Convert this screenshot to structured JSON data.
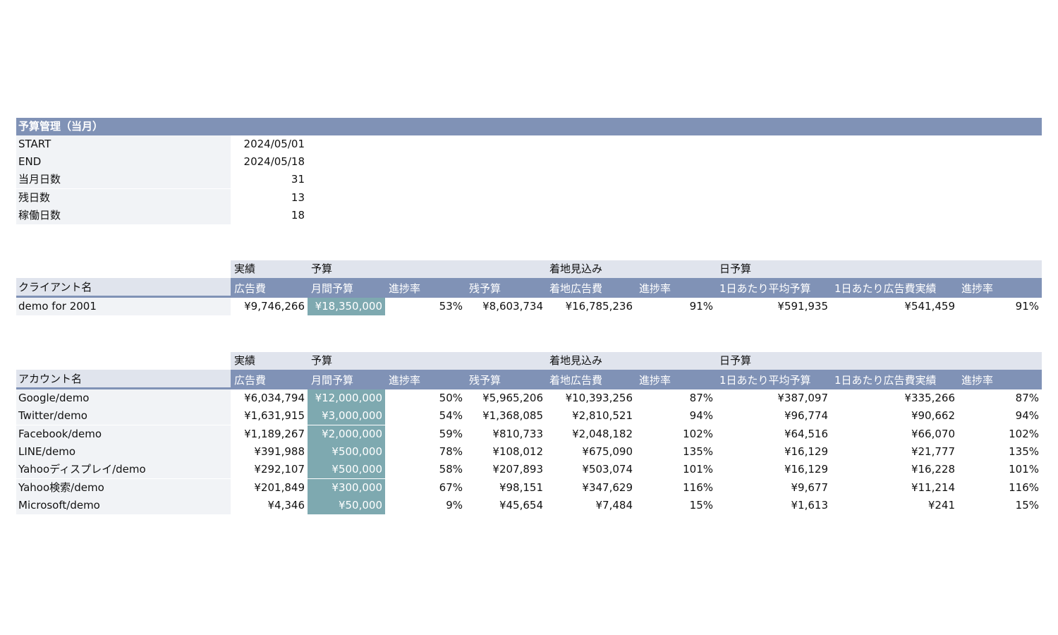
{
  "budget_section": {
    "title": "予算管理（当月）",
    "rows": [
      {
        "label": "START",
        "value": "2024/05/01"
      },
      {
        "label": "END",
        "value": "2024/05/18"
      },
      {
        "label": "当月日数",
        "value": "31"
      },
      {
        "label": "残日数",
        "value": "13"
      },
      {
        "label": "稼働日数",
        "value": "18"
      }
    ]
  },
  "client_table": {
    "group_headers": {
      "jisseki": "実績",
      "yosan": "予算",
      "chakuchi": "着地見込み",
      "nichiyosan": "日予算"
    },
    "name_header": "クライアント名",
    "columns": [
      "広告費",
      "月間予算",
      "進捗率",
      "残予算",
      "着地広告費",
      "進捗率",
      "1日あたり平均予算",
      "1日あたり広告費実績",
      "進捗率"
    ],
    "rows": [
      {
        "name": "demo for 2001",
        "cells": [
          "¥9,746,266",
          "¥18,350,000",
          "53%",
          "¥8,603,734",
          "¥16,785,236",
          "91%",
          "¥591,935",
          "¥541,459",
          "91%"
        ]
      }
    ]
  },
  "account_table": {
    "group_headers": {
      "jisseki": "実績",
      "yosan": "予算",
      "chakuchi": "着地見込み",
      "nichiyosan": "日予算"
    },
    "name_header": "アカウント名",
    "columns": [
      "広告費",
      "月間予算",
      "進捗率",
      "残予算",
      "着地広告費",
      "進捗率",
      "1日あたり平均予算",
      "1日あたり広告費実績",
      "進捗率"
    ],
    "rows": [
      {
        "name": "Google/demo",
        "cells": [
          "¥6,034,794",
          "¥12,000,000",
          "50%",
          "¥5,965,206",
          "¥10,393,256",
          "87%",
          "¥387,097",
          "¥335,266",
          "87%"
        ]
      },
      {
        "name": "Twitter/demo",
        "cells": [
          "¥1,631,915",
          "¥3,000,000",
          "54%",
          "¥1,368,085",
          "¥2,810,521",
          "94%",
          "¥96,774",
          "¥90,662",
          "94%"
        ]
      },
      {
        "name": "Facebook/demo",
        "cells": [
          "¥1,189,267",
          "¥2,000,000",
          "59%",
          "¥810,733",
          "¥2,048,182",
          "102%",
          "¥64,516",
          "¥66,070",
          "102%"
        ]
      },
      {
        "name": "LINE/demo",
        "cells": [
          "¥391,988",
          "¥500,000",
          "78%",
          "¥108,012",
          "¥675,090",
          "135%",
          "¥16,129",
          "¥21,777",
          "135%"
        ]
      },
      {
        "name": "Yahooディスプレイ/demo",
        "cells": [
          "¥292,107",
          "¥500,000",
          "58%",
          "¥207,893",
          "¥503,074",
          "101%",
          "¥16,129",
          "¥16,228",
          "101%"
        ]
      },
      {
        "name": "Yahoo検索/demo",
        "cells": [
          "¥201,849",
          "¥300,000",
          "67%",
          "¥98,151",
          "¥347,629",
          "116%",
          "¥9,677",
          "¥11,214",
          "116%"
        ]
      },
      {
        "name": "Microsoft/demo",
        "cells": [
          "¥4,346",
          "¥50,000",
          "9%",
          "¥45,654",
          "¥7,484",
          "15%",
          "¥1,613",
          "¥241",
          "15%"
        ]
      }
    ]
  },
  "colors": {
    "header_blue": "#8092b6",
    "band_light": "#e0e4ed",
    "label_gray": "#f1f3f6",
    "budget_teal": "#7ea9b0"
  }
}
